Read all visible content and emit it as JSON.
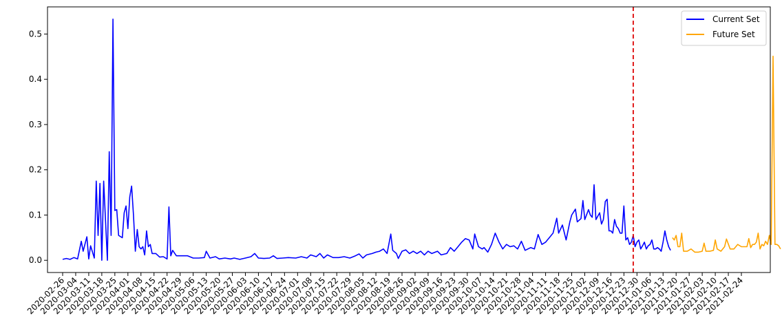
{
  "chart_data": {
    "type": "line",
    "title": "",
    "xlabel": "",
    "ylabel": "",
    "ylim": [
      -0.027,
      0.56
    ],
    "y_ticks": [
      0.0,
      0.1,
      0.2,
      0.3,
      0.4,
      0.5
    ],
    "x_tick_labels": [
      "2020-02-26",
      "2020-03-04",
      "2020-03-11",
      "2020-03-18",
      "2020-03-25",
      "2020-04-01",
      "2020-04-08",
      "2020-04-15",
      "2020-04-22",
      "2020-04-29",
      "2020-05-06",
      "2020-05-13",
      "2020-05-20",
      "2020-05-27",
      "2020-06-03",
      "2020-06-10",
      "2020-06-17",
      "2020-06-24",
      "2020-07-01",
      "2020-07-08",
      "2020-07-15",
      "2020-07-22",
      "2020-07-29",
      "2020-08-05",
      "2020-08-12",
      "2020-08-19",
      "2020-08-26",
      "2020-09-02",
      "2020-09-09",
      "2020-09-16",
      "2020-09-23",
      "2020-09-30",
      "2020-10-07",
      "2020-10-14",
      "2020-10-21",
      "2020-10-28",
      "2020-11-04",
      "2020-11-11",
      "2020-11-18",
      "2020-11-25",
      "2020-12-02",
      "2020-12-09",
      "2020-12-16",
      "2020-12-23",
      "2020-12-30",
      "2021-01-06",
      "2021-01-13",
      "2021-01-20",
      "2021-01-27",
      "2021-02-03",
      "2021-02-10",
      "2021-02-17",
      "2021-02-24"
    ],
    "split_date": "2020-12-28",
    "legend": {
      "placement": "top-right",
      "entries": [
        "Current Set",
        "Future Set"
      ]
    },
    "grid": false,
    "series": [
      {
        "name": "Current Set",
        "color": "#0000ff",
        "points": [
          [
            "2020-02-26",
            0.002
          ],
          [
            "2020-02-28",
            0.004
          ],
          [
            "2020-03-01",
            0.002
          ],
          [
            "2020-03-03",
            0.006
          ],
          [
            "2020-03-05",
            0.003
          ],
          [
            "2020-03-07",
            0.042
          ],
          [
            "2020-03-08",
            0.02
          ],
          [
            "2020-03-10",
            0.052
          ],
          [
            "2020-03-11",
            0.003
          ],
          [
            "2020-03-12",
            0.032
          ],
          [
            "2020-03-14",
            0.005
          ],
          [
            "2020-03-15",
            0.175
          ],
          [
            "2020-03-16",
            0.055
          ],
          [
            "2020-03-17",
            0.17
          ],
          [
            "2020-03-18",
            0.0
          ],
          [
            "2020-03-19",
            0.175
          ],
          [
            "2020-03-21",
            0.0
          ],
          [
            "2020-03-22",
            0.24
          ],
          [
            "2020-03-23",
            0.055
          ],
          [
            "2020-03-24",
            0.533
          ],
          [
            "2020-03-25",
            0.11
          ],
          [
            "2020-03-26",
            0.112
          ],
          [
            "2020-03-27",
            0.055
          ],
          [
            "2020-03-29",
            0.05
          ],
          [
            "2020-03-30",
            0.105
          ],
          [
            "2020-03-31",
            0.12
          ],
          [
            "2020-04-01",
            0.07
          ],
          [
            "2020-04-02",
            0.14
          ],
          [
            "2020-04-03",
            0.164
          ],
          [
            "2020-04-04",
            0.1
          ],
          [
            "2020-04-05",
            0.02
          ],
          [
            "2020-04-06",
            0.068
          ],
          [
            "2020-04-07",
            0.03
          ],
          [
            "2020-04-08",
            0.025
          ],
          [
            "2020-04-09",
            0.03
          ],
          [
            "2020-04-10",
            0.012
          ],
          [
            "2020-04-11",
            0.065
          ],
          [
            "2020-04-12",
            0.03
          ],
          [
            "2020-04-13",
            0.035
          ],
          [
            "2020-04-14",
            0.015
          ],
          [
            "2020-04-16",
            0.015
          ],
          [
            "2020-04-18",
            0.007
          ],
          [
            "2020-04-20",
            0.008
          ],
          [
            "2020-04-22",
            0.003
          ],
          [
            "2020-04-23",
            0.118
          ],
          [
            "2020-04-24",
            0.01
          ],
          [
            "2020-04-25",
            0.022
          ],
          [
            "2020-04-27",
            0.01
          ],
          [
            "2020-04-30",
            0.01
          ],
          [
            "2020-05-03",
            0.01
          ],
          [
            "2020-05-06",
            0.005
          ],
          [
            "2020-05-09",
            0.005
          ],
          [
            "2020-05-12",
            0.006
          ],
          [
            "2020-05-13",
            0.02
          ],
          [
            "2020-05-15",
            0.005
          ],
          [
            "2020-05-18",
            0.008
          ],
          [
            "2020-05-20",
            0.003
          ],
          [
            "2020-05-23",
            0.005
          ],
          [
            "2020-05-26",
            0.003
          ],
          [
            "2020-05-28",
            0.005
          ],
          [
            "2020-05-31",
            0.002
          ],
          [
            "2020-06-03",
            0.005
          ],
          [
            "2020-06-06",
            0.008
          ],
          [
            "2020-06-08",
            0.015
          ],
          [
            "2020-06-10",
            0.005
          ],
          [
            "2020-06-13",
            0.004
          ],
          [
            "2020-06-16",
            0.005
          ],
          [
            "2020-06-18",
            0.01
          ],
          [
            "2020-06-20",
            0.004
          ],
          [
            "2020-06-23",
            0.005
          ],
          [
            "2020-06-26",
            0.006
          ],
          [
            "2020-06-30",
            0.005
          ],
          [
            "2020-07-03",
            0.008
          ],
          [
            "2020-07-06",
            0.005
          ],
          [
            "2020-07-08",
            0.012
          ],
          [
            "2020-07-11",
            0.008
          ],
          [
            "2020-07-13",
            0.015
          ],
          [
            "2020-07-15",
            0.005
          ],
          [
            "2020-07-17",
            0.012
          ],
          [
            "2020-07-20",
            0.006
          ],
          [
            "2020-07-23",
            0.006
          ],
          [
            "2020-07-26",
            0.008
          ],
          [
            "2020-07-29",
            0.005
          ],
          [
            "2020-08-01",
            0.01
          ],
          [
            "2020-08-03",
            0.014
          ],
          [
            "2020-08-05",
            0.005
          ],
          [
            "2020-08-07",
            0.012
          ],
          [
            "2020-08-10",
            0.015
          ],
          [
            "2020-08-12",
            0.018
          ],
          [
            "2020-08-14",
            0.02
          ],
          [
            "2020-08-16",
            0.025
          ],
          [
            "2020-08-18",
            0.015
          ],
          [
            "2020-08-20",
            0.058
          ],
          [
            "2020-08-21",
            0.022
          ],
          [
            "2020-08-23",
            0.015
          ],
          [
            "2020-08-24",
            0.004
          ],
          [
            "2020-08-26",
            0.02
          ],
          [
            "2020-08-28",
            0.023
          ],
          [
            "2020-08-30",
            0.015
          ],
          [
            "2020-09-01",
            0.02
          ],
          [
            "2020-09-03",
            0.015
          ],
          [
            "2020-09-05",
            0.02
          ],
          [
            "2020-09-07",
            0.012
          ],
          [
            "2020-09-09",
            0.02
          ],
          [
            "2020-09-11",
            0.015
          ],
          [
            "2020-09-14",
            0.02
          ],
          [
            "2020-09-16",
            0.012
          ],
          [
            "2020-09-19",
            0.015
          ],
          [
            "2020-09-21",
            0.028
          ],
          [
            "2020-09-23",
            0.02
          ],
          [
            "2020-09-25",
            0.03
          ],
          [
            "2020-09-27",
            0.04
          ],
          [
            "2020-09-29",
            0.048
          ],
          [
            "2020-10-01",
            0.045
          ],
          [
            "2020-10-03",
            0.025
          ],
          [
            "2020-10-04",
            0.058
          ],
          [
            "2020-10-06",
            0.03
          ],
          [
            "2020-10-08",
            0.025
          ],
          [
            "2020-10-09",
            0.028
          ],
          [
            "2020-10-11",
            0.018
          ],
          [
            "2020-10-13",
            0.035
          ],
          [
            "2020-10-15",
            0.06
          ],
          [
            "2020-10-17",
            0.04
          ],
          [
            "2020-10-19",
            0.025
          ],
          [
            "2020-10-21",
            0.035
          ],
          [
            "2020-10-23",
            0.03
          ],
          [
            "2020-10-25",
            0.032
          ],
          [
            "2020-10-27",
            0.025
          ],
          [
            "2020-10-29",
            0.042
          ],
          [
            "2020-10-31",
            0.022
          ],
          [
            "2020-11-03",
            0.028
          ],
          [
            "2020-11-05",
            0.025
          ],
          [
            "2020-11-07",
            0.057
          ],
          [
            "2020-11-09",
            0.035
          ],
          [
            "2020-11-11",
            0.04
          ],
          [
            "2020-11-13",
            0.05
          ],
          [
            "2020-11-15",
            0.06
          ],
          [
            "2020-11-17",
            0.093
          ],
          [
            "2020-11-18",
            0.06
          ],
          [
            "2020-11-20",
            0.078
          ],
          [
            "2020-11-22",
            0.045
          ],
          [
            "2020-11-24",
            0.085
          ],
          [
            "2020-11-25",
            0.1
          ],
          [
            "2020-11-27",
            0.113
          ],
          [
            "2020-11-28",
            0.085
          ],
          [
            "2020-11-30",
            0.092
          ],
          [
            "2020-12-01",
            0.132
          ],
          [
            "2020-12-02",
            0.09
          ],
          [
            "2020-12-04",
            0.112
          ],
          [
            "2020-12-05",
            0.1
          ],
          [
            "2020-12-06",
            0.095
          ],
          [
            "2020-12-07",
            0.167
          ],
          [
            "2020-12-08",
            0.09
          ],
          [
            "2020-12-10",
            0.105
          ],
          [
            "2020-12-11",
            0.08
          ],
          [
            "2020-12-12",
            0.09
          ],
          [
            "2020-12-13",
            0.13
          ],
          [
            "2020-12-14",
            0.135
          ],
          [
            "2020-12-15",
            0.065
          ],
          [
            "2020-12-16",
            0.065
          ],
          [
            "2020-12-17",
            0.06
          ],
          [
            "2020-12-18",
            0.09
          ],
          [
            "2020-12-19",
            0.075
          ],
          [
            "2020-12-20",
            0.07
          ],
          [
            "2020-12-21",
            0.06
          ],
          [
            "2020-12-22",
            0.06
          ],
          [
            "2020-12-23",
            0.12
          ],
          [
            "2020-12-24",
            0.045
          ],
          [
            "2020-12-25",
            0.05
          ],
          [
            "2020-12-26",
            0.035
          ],
          [
            "2020-12-27",
            0.04
          ],
          [
            "2020-12-28",
            0.055
          ],
          [
            "2020-12-29",
            0.03
          ],
          [
            "2020-12-30",
            0.04
          ],
          [
            "2020-12-31",
            0.045
          ],
          [
            "2021-01-01",
            0.025
          ],
          [
            "2021-01-02",
            0.032
          ],
          [
            "2021-01-03",
            0.04
          ],
          [
            "2021-01-04",
            0.025
          ],
          [
            "2021-01-05",
            0.032
          ],
          [
            "2021-01-06",
            0.035
          ],
          [
            "2021-01-07",
            0.045
          ],
          [
            "2021-01-08",
            0.025
          ],
          [
            "2021-01-09",
            0.025
          ],
          [
            "2021-01-10",
            0.028
          ],
          [
            "2021-01-11",
            0.025
          ],
          [
            "2021-01-12",
            0.02
          ],
          [
            "2021-01-13",
            0.04
          ],
          [
            "2021-01-14",
            0.065
          ],
          [
            "2021-01-15",
            0.045
          ],
          [
            "2021-01-16",
            0.03
          ],
          [
            "2021-01-17",
            0.022
          ]
        ]
      },
      {
        "name": "Future Set",
        "color": "#ffa500",
        "points": [
          [
            "2021-01-18",
            0.05
          ],
          [
            "2021-01-19",
            0.045
          ],
          [
            "2021-01-20",
            0.055
          ],
          [
            "2021-01-21",
            0.03
          ],
          [
            "2021-01-22",
            0.03
          ],
          [
            "2021-01-23",
            0.06
          ],
          [
            "2021-01-24",
            0.02
          ],
          [
            "2021-01-26",
            0.02
          ],
          [
            "2021-01-28",
            0.025
          ],
          [
            "2021-01-30",
            0.018
          ],
          [
            "2021-02-01",
            0.018
          ],
          [
            "2021-02-03",
            0.02
          ],
          [
            "2021-02-04",
            0.038
          ],
          [
            "2021-02-05",
            0.02
          ],
          [
            "2021-02-07",
            0.02
          ],
          [
            "2021-02-09",
            0.022
          ],
          [
            "2021-02-10",
            0.045
          ],
          [
            "2021-02-11",
            0.025
          ],
          [
            "2021-02-13",
            0.02
          ],
          [
            "2021-02-15",
            0.03
          ],
          [
            "2021-02-16",
            0.047
          ],
          [
            "2021-02-18",
            0.025
          ],
          [
            "2021-02-20",
            0.025
          ],
          [
            "2021-02-22",
            0.035
          ],
          [
            "2021-02-24",
            0.03
          ],
          [
            "2021-02-25",
            0.03
          ],
          [
            "2021-02-27",
            0.03
          ],
          [
            "2021-02-28",
            0.048
          ],
          [
            "2021-03-01",
            0.028
          ],
          [
            "2021-03-02",
            0.035
          ],
          [
            "2021-03-03",
            0.035
          ],
          [
            "2021-03-04",
            0.04
          ],
          [
            "2021-03-05",
            0.06
          ],
          [
            "2021-03-06",
            0.025
          ],
          [
            "2021-03-07",
            0.035
          ],
          [
            "2021-03-08",
            0.032
          ],
          [
            "2021-03-09",
            0.042
          ],
          [
            "2021-03-10",
            0.035
          ],
          [
            "2021-03-11",
            0.055
          ],
          [
            "2021-03-12",
            0.035
          ],
          [
            "2021-03-13",
            0.451
          ],
          [
            "2021-03-14",
            0.035
          ],
          [
            "2021-03-15",
            0.035
          ],
          [
            "2021-03-16",
            0.032
          ],
          [
            "2021-03-17",
            0.025
          ]
        ]
      }
    ],
    "colors": {
      "split_line": "#dd0000",
      "current": "#0000ff",
      "future": "#ffa500"
    }
  }
}
